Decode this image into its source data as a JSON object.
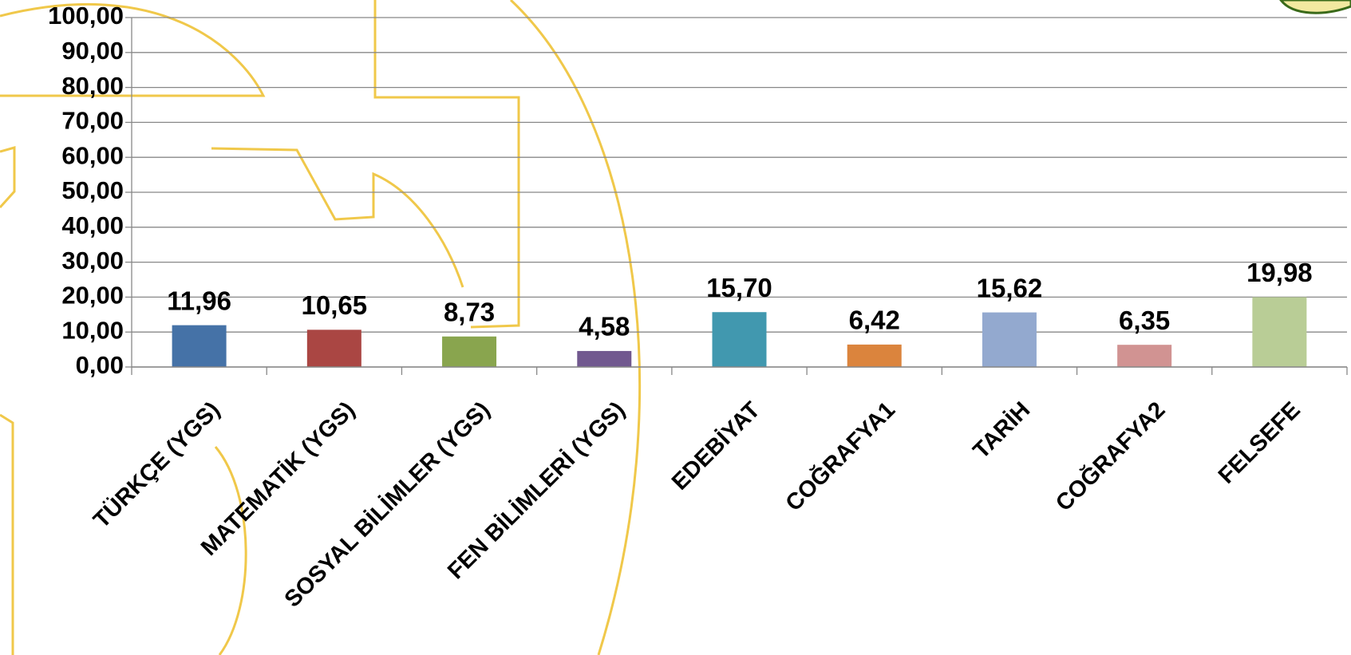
{
  "chart_data": {
    "type": "bar",
    "categories": [
      "TÜRKÇE (YGS)",
      "MATEMATİK (YGS)",
      "SOSYAL BİLİMLER (YGS)",
      "FEN BİLİMLERİ (YGS)",
      "EDEBİYAT",
      "COĞRAFYA1",
      "TARİH",
      "COĞRAFYA2",
      "FELSEFE"
    ],
    "values": [
      11.96,
      10.65,
      8.73,
      4.58,
      15.7,
      6.42,
      15.62,
      6.35,
      19.98
    ],
    "value_labels": [
      "11,96",
      "10,65",
      "8,73",
      "4,58",
      "15,70",
      "6,42",
      "15,62",
      "6,35",
      "19,98"
    ],
    "colors": [
      "#4572a7",
      "#aa4643",
      "#89a54e",
      "#71588f",
      "#4198af",
      "#db843d",
      "#93a9cf",
      "#d19392",
      "#b9cd96"
    ],
    "ylim": [
      0,
      100
    ],
    "yticks": [
      {
        "value": 0,
        "label": "0,00"
      },
      {
        "value": 10,
        "label": "10,00"
      },
      {
        "value": 20,
        "label": "20,00"
      },
      {
        "value": 30,
        "label": "30,00"
      },
      {
        "value": 40,
        "label": "40,00"
      },
      {
        "value": 50,
        "label": "50,00"
      },
      {
        "value": 60,
        "label": "60,00"
      },
      {
        "value": 70,
        "label": "70,00"
      },
      {
        "value": 80,
        "label": "80,00"
      },
      {
        "value": 90,
        "label": "90,00"
      },
      {
        "value": 100,
        "label": "100,00"
      }
    ],
    "grid": true
  }
}
